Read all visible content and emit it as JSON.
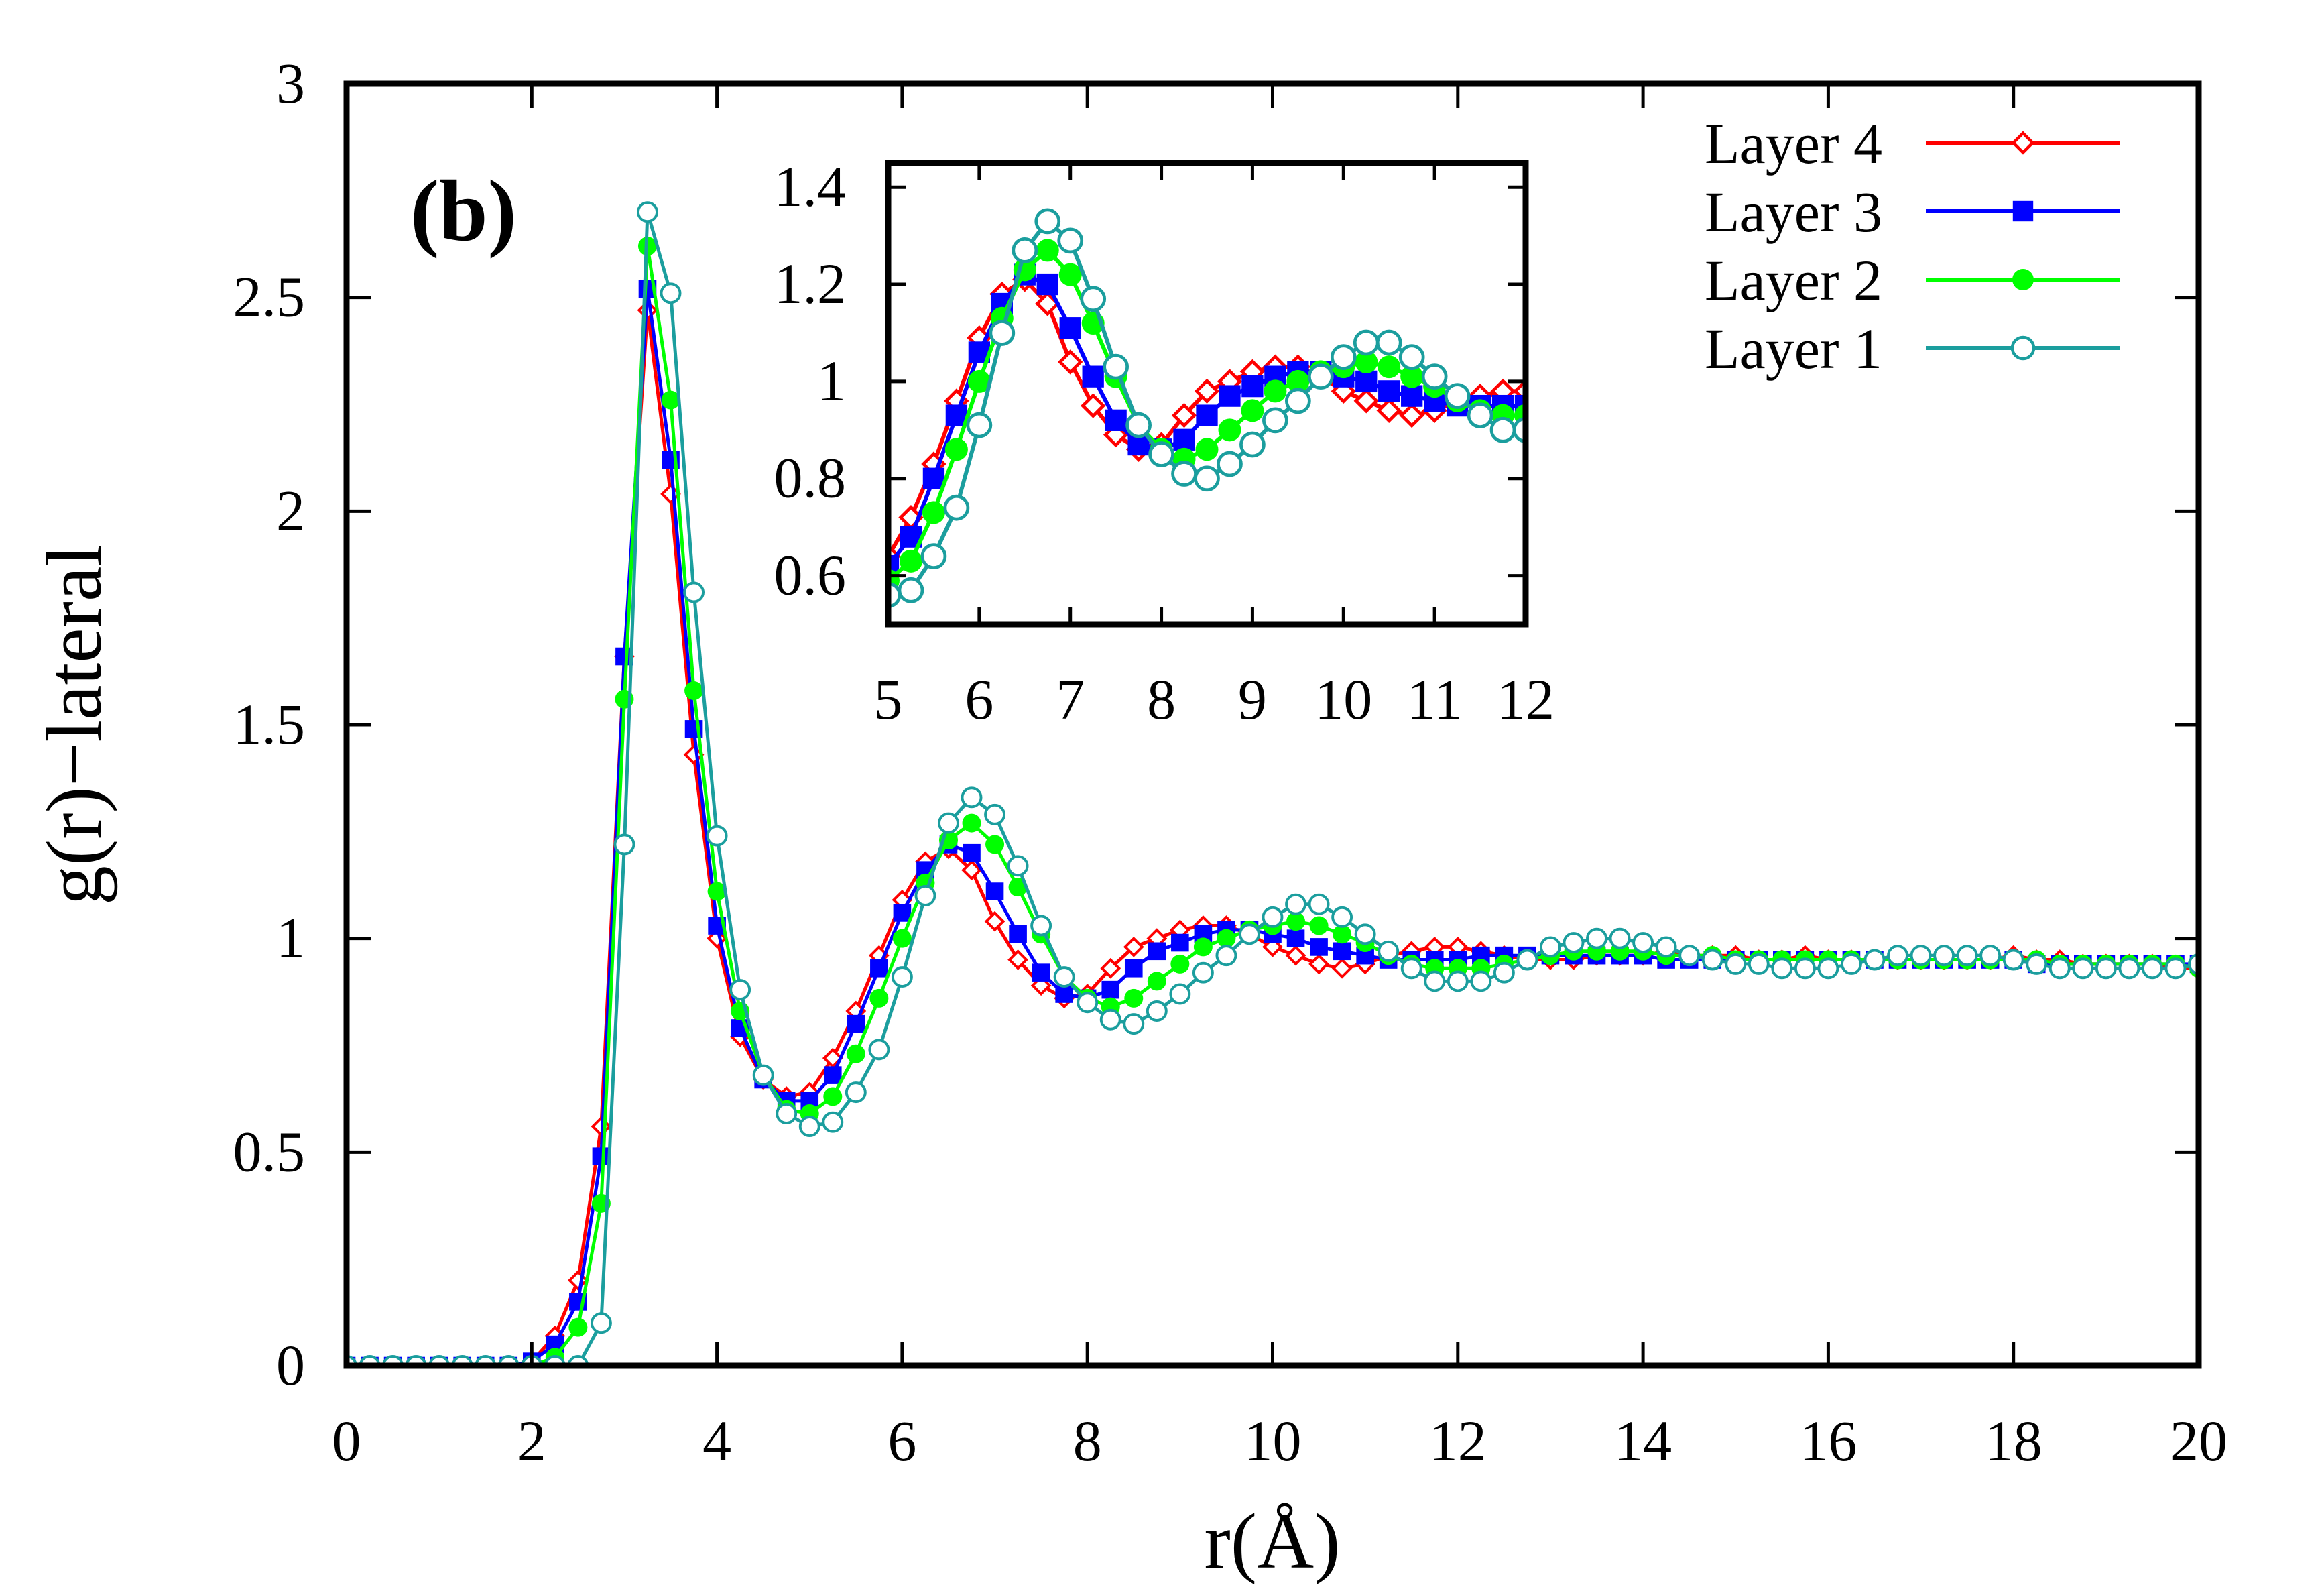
{
  "chart_data": [
    {
      "type": "line",
      "panel_label": "(b)",
      "xlabel": "r(Å)",
      "ylabel": "g(r)−lateral",
      "xlim": [
        0,
        20
      ],
      "ylim": [
        0,
        3
      ],
      "xticks": [
        "0",
        "2",
        "4",
        "6",
        "8",
        "10",
        "12",
        "14",
        "16",
        "18",
        "20"
      ],
      "yticks": [
        "0",
        "0.5",
        "1",
        "1.5",
        "2",
        "2.5",
        "3"
      ],
      "grid": false,
      "legend_position": "top-right",
      "series": [
        {
          "name": "Layer 4",
          "color": "#ff0000",
          "marker": "open-diamond",
          "x": [
            0,
            0.25,
            0.5,
            0.75,
            1,
            1.25,
            1.5,
            1.75,
            2,
            2.25,
            2.5,
            2.75,
            3,
            3.25,
            3.5,
            3.75,
            4,
            4.25,
            4.5,
            4.75,
            5,
            5.25,
            5.5,
            5.75,
            6,
            6.25,
            6.5,
            6.75,
            7,
            7.25,
            7.5,
            7.75,
            8,
            8.25,
            8.5,
            8.75,
            9,
            9.25,
            9.5,
            9.75,
            10,
            10.25,
            10.5,
            10.75,
            11,
            11.25,
            11.5,
            11.75,
            12,
            12.25,
            12.5,
            12.75,
            13,
            13.25,
            13.5,
            13.75,
            14,
            14.25,
            14.5,
            14.75,
            15,
            15.25,
            15.5,
            15.75,
            16,
            16.25,
            16.5,
            16.75,
            17,
            17.25,
            17.5,
            17.75,
            18,
            18.25,
            18.5,
            18.75,
            19,
            19.25,
            19.5,
            19.75,
            20
          ],
          "y": [
            0,
            0,
            0,
            0,
            0,
            0,
            0,
            0,
            0.01,
            0.07,
            0.2,
            0.56,
            1.66,
            2.47,
            2.04,
            1.43,
            1.0,
            0.77,
            0.67,
            0.63,
            0.64,
            0.72,
            0.83,
            0.96,
            1.09,
            1.18,
            1.21,
            1.16,
            1.04,
            0.95,
            0.89,
            0.86,
            0.87,
            0.93,
            0.98,
            1.0,
            1.02,
            1.03,
            1.03,
            1.01,
            0.98,
            0.96,
            0.94,
            0.93,
            0.94,
            0.96,
            0.97,
            0.98,
            0.98,
            0.97,
            0.96,
            0.95,
            0.95,
            0.95,
            0.96,
            0.96,
            0.96,
            0.97,
            0.96,
            0.96,
            0.96,
            0.95,
            0.95,
            0.96,
            0.95,
            0.95,
            0.95,
            0.95,
            0.95,
            0.95,
            0.95,
            0.95,
            0.96,
            0.95,
            0.95,
            0.94,
            0.94,
            0.94,
            0.94,
            0.93,
            0.93
          ]
        },
        {
          "name": "Layer 3",
          "color": "#0000ff",
          "marker": "filled-square",
          "x": [
            0,
            0.25,
            0.5,
            0.75,
            1,
            1.25,
            1.5,
            1.75,
            2,
            2.25,
            2.5,
            2.75,
            3,
            3.25,
            3.5,
            3.75,
            4,
            4.25,
            4.5,
            4.75,
            5,
            5.25,
            5.5,
            5.75,
            6,
            6.25,
            6.5,
            6.75,
            7,
            7.25,
            7.5,
            7.75,
            8,
            8.25,
            8.5,
            8.75,
            9,
            9.25,
            9.5,
            9.75,
            10,
            10.25,
            10.5,
            10.75,
            11,
            11.25,
            11.5,
            11.75,
            12,
            12.25,
            12.5,
            12.75,
            13,
            13.25,
            13.5,
            13.75,
            14,
            14.25,
            14.5,
            14.75,
            15,
            15.25,
            15.5,
            15.75,
            16,
            16.25,
            16.5,
            16.75,
            17,
            17.25,
            17.5,
            17.75,
            18,
            18.25,
            18.5,
            18.75,
            19,
            19.25,
            19.5,
            19.75,
            20
          ],
          "y": [
            0,
            0,
            0,
            0,
            0,
            0,
            0,
            0,
            0.01,
            0.05,
            0.15,
            0.49,
            1.66,
            2.52,
            2.12,
            1.49,
            1.03,
            0.79,
            0.67,
            0.62,
            0.62,
            0.68,
            0.8,
            0.93,
            1.06,
            1.16,
            1.22,
            1.2,
            1.11,
            1.01,
            0.92,
            0.87,
            0.86,
            0.88,
            0.93,
            0.97,
            0.99,
            1.01,
            1.02,
            1.02,
            1.01,
            1.0,
            0.98,
            0.97,
            0.96,
            0.95,
            0.95,
            0.95,
            0.95,
            0.96,
            0.96,
            0.96,
            0.96,
            0.96,
            0.96,
            0.96,
            0.96,
            0.95,
            0.95,
            0.95,
            0.95,
            0.95,
            0.95,
            0.95,
            0.95,
            0.95,
            0.95,
            0.95,
            0.95,
            0.95,
            0.95,
            0.95,
            0.95,
            0.94,
            0.94,
            0.94,
            0.94,
            0.94,
            0.94,
            0.94,
            0.94
          ]
        },
        {
          "name": "Layer 2",
          "color": "#00ff00",
          "marker": "filled-circle",
          "x": [
            0,
            0.25,
            0.5,
            0.75,
            1,
            1.25,
            1.5,
            1.75,
            2,
            2.25,
            2.5,
            2.75,
            3,
            3.25,
            3.5,
            3.75,
            4,
            4.25,
            4.5,
            4.75,
            5,
            5.25,
            5.5,
            5.75,
            6,
            6.25,
            6.5,
            6.75,
            7,
            7.25,
            7.5,
            7.75,
            8,
            8.25,
            8.5,
            8.75,
            9,
            9.25,
            9.5,
            9.75,
            10,
            10.25,
            10.5,
            10.75,
            11,
            11.25,
            11.5,
            11.75,
            12,
            12.25,
            12.5,
            12.75,
            13,
            13.25,
            13.5,
            13.75,
            14,
            14.25,
            14.5,
            14.75,
            15,
            15.25,
            15.5,
            15.75,
            16,
            16.25,
            16.5,
            16.75,
            17,
            17.25,
            17.5,
            17.75,
            18,
            18.25,
            18.5,
            18.75,
            19,
            19.25,
            19.5,
            19.75,
            20
          ],
          "y": [
            0,
            0,
            0,
            0,
            0,
            0,
            0,
            0,
            0,
            0.02,
            0.09,
            0.38,
            1.56,
            2.62,
            2.26,
            1.58,
            1.11,
            0.83,
            0.68,
            0.6,
            0.59,
            0.63,
            0.73,
            0.86,
            1.0,
            1.13,
            1.23,
            1.27,
            1.22,
            1.12,
            1.01,
            0.91,
            0.86,
            0.84,
            0.86,
            0.9,
            0.94,
            0.98,
            1.0,
            1.02,
            1.03,
            1.04,
            1.03,
            1.01,
            0.99,
            0.96,
            0.94,
            0.93,
            0.93,
            0.93,
            0.94,
            0.95,
            0.96,
            0.97,
            0.97,
            0.97,
            0.97,
            0.96,
            0.96,
            0.96,
            0.95,
            0.95,
            0.95,
            0.95,
            0.95,
            0.95,
            0.95,
            0.95,
            0.95,
            0.95,
            0.95,
            0.95,
            0.95,
            0.95,
            0.94,
            0.94,
            0.94,
            0.94,
            0.94,
            0.94,
            0.93
          ]
        },
        {
          "name": "Layer 1",
          "color": "#1b9e9e",
          "marker": "open-circle",
          "x": [
            0,
            0.25,
            0.5,
            0.75,
            1,
            1.25,
            1.5,
            1.75,
            2,
            2.25,
            2.5,
            2.75,
            3,
            3.25,
            3.5,
            3.75,
            4,
            4.25,
            4.5,
            4.75,
            5,
            5.25,
            5.5,
            5.75,
            6,
            6.25,
            6.5,
            6.75,
            7,
            7.25,
            7.5,
            7.75,
            8,
            8.25,
            8.5,
            8.75,
            9,
            9.25,
            9.5,
            9.75,
            10,
            10.25,
            10.5,
            10.75,
            11,
            11.25,
            11.5,
            11.75,
            12,
            12.25,
            12.5,
            12.75,
            13,
            13.25,
            13.5,
            13.75,
            14,
            14.25,
            14.5,
            14.75,
            15,
            15.25,
            15.5,
            15.75,
            16,
            16.25,
            16.5,
            16.75,
            17,
            17.25,
            17.5,
            17.75,
            18,
            18.25,
            18.5,
            18.75,
            19,
            19.25,
            19.5,
            19.75,
            20
          ],
          "y": [
            0,
            0,
            0,
            0,
            0,
            0,
            0,
            0,
            0,
            0,
            0,
            0.1,
            1.22,
            2.7,
            2.51,
            1.81,
            1.24,
            0.88,
            0.68,
            0.59,
            0.56,
            0.57,
            0.64,
            0.74,
            0.91,
            1.1,
            1.27,
            1.33,
            1.29,
            1.17,
            1.03,
            0.91,
            0.85,
            0.81,
            0.8,
            0.83,
            0.87,
            0.92,
            0.96,
            1.01,
            1.05,
            1.08,
            1.08,
            1.05,
            1.01,
            0.97,
            0.93,
            0.9,
            0.9,
            0.9,
            0.92,
            0.95,
            0.98,
            0.99,
            1.0,
            1.0,
            0.99,
            0.98,
            0.96,
            0.95,
            0.94,
            0.94,
            0.93,
            0.93,
            0.93,
            0.94,
            0.95,
            0.96,
            0.96,
            0.96,
            0.96,
            0.96,
            0.95,
            0.94,
            0.93,
            0.93,
            0.93,
            0.93,
            0.93,
            0.93,
            0.94
          ]
        }
      ]
    },
    {
      "type": "line",
      "role": "inset",
      "xlim": [
        5,
        12
      ],
      "ylim": [
        0.5,
        1.45
      ],
      "xticks": [
        "5",
        "6",
        "7",
        "8",
        "9",
        "10",
        "11",
        "12"
      ],
      "yticks": [
        "0.6",
        "0.8",
        "1",
        "1.2",
        "1.4"
      ],
      "series_source": "same four layers as main panel, zoomed to 5–12 Å"
    }
  ]
}
